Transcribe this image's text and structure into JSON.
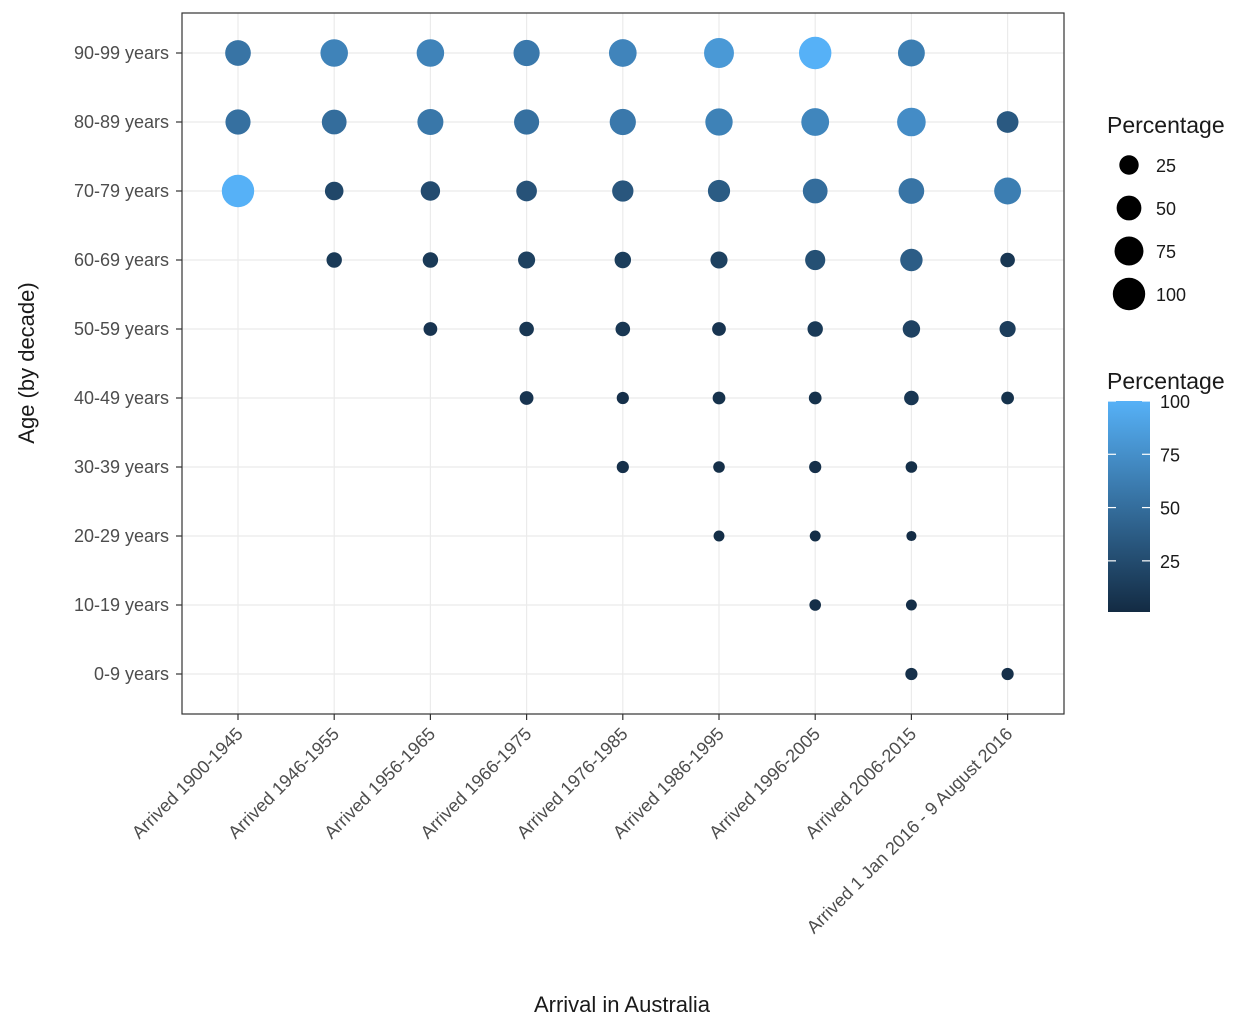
{
  "chart_data": {
    "type": "scatter",
    "title": "",
    "xlabel": "Arrival in Australia",
    "ylabel": "Age (by decade)",
    "grid": true,
    "legend_position": "right",
    "x_categories": [
      "Arrived 1900-1945",
      "Arrived 1946-1955",
      "Arrived 1956-1965",
      "Arrived 1966-1975",
      "Arrived 1976-1985",
      "Arrived 1986-1995",
      "Arrived 1996-2005",
      "Arrived 2006-2015",
      "Arrived 1 Jan 2016 - 9 August 2016"
    ],
    "y_categories": [
      "0-9 years",
      "10-19 years",
      "20-29 years",
      "30-39 years",
      "40-49 years",
      "50-59 years",
      "60-69 years",
      "70-79 years",
      "80-89 years",
      "90-99 years"
    ],
    "size_legend": {
      "title": "Percentage",
      "breaks": [
        25,
        50,
        75,
        100
      ]
    },
    "color_legend": {
      "title": "Percentage",
      "breaks": [
        25,
        50,
        75,
        100
      ],
      "low_color": "#132b43",
      "high_color": "#56b1f7",
      "range": [
        1,
        100
      ]
    },
    "points": [
      {
        "x": "Arrived 1900-1945",
        "y": "90-99 years",
        "value": 55
      },
      {
        "x": "Arrived 1900-1945",
        "y": "80-89 years",
        "value": 52
      },
      {
        "x": "Arrived 1900-1945",
        "y": "70-79 years",
        "value": 100
      },
      {
        "x": "Arrived 1946-1955",
        "y": "90-99 years",
        "value": 66
      },
      {
        "x": "Arrived 1946-1955",
        "y": "80-89 years",
        "value": 50
      },
      {
        "x": "Arrived 1946-1955",
        "y": "70-79 years",
        "value": 22
      },
      {
        "x": "Arrived 1946-1955",
        "y": "60-69 years",
        "value": 12
      },
      {
        "x": "Arrived 1956-1965",
        "y": "90-99 years",
        "value": 66
      },
      {
        "x": "Arrived 1956-1965",
        "y": "80-89 years",
        "value": 57
      },
      {
        "x": "Arrived 1956-1965",
        "y": "70-79 years",
        "value": 25
      },
      {
        "x": "Arrived 1956-1965",
        "y": "60-69 years",
        "value": 12
      },
      {
        "x": "Arrived 1956-1965",
        "y": "50-59 years",
        "value": 8
      },
      {
        "x": "Arrived 1966-1975",
        "y": "90-99 years",
        "value": 58
      },
      {
        "x": "Arrived 1966-1975",
        "y": "80-89 years",
        "value": 52
      },
      {
        "x": "Arrived 1966-1975",
        "y": "70-79 years",
        "value": 30
      },
      {
        "x": "Arrived 1966-1975",
        "y": "60-69 years",
        "value": 17
      },
      {
        "x": "Arrived 1966-1975",
        "y": "50-59 years",
        "value": 10
      },
      {
        "x": "Arrived 1966-1975",
        "y": "40-49 years",
        "value": 8
      },
      {
        "x": "Arrived 1976-1985",
        "y": "90-99 years",
        "value": 67
      },
      {
        "x": "Arrived 1976-1985",
        "y": "80-89 years",
        "value": 58
      },
      {
        "x": "Arrived 1976-1985",
        "y": "70-79 years",
        "value": 33
      },
      {
        "x": "Arrived 1976-1985",
        "y": "60-69 years",
        "value": 15
      },
      {
        "x": "Arrived 1976-1985",
        "y": "50-59 years",
        "value": 10
      },
      {
        "x": "Arrived 1976-1985",
        "y": "40-49 years",
        "value": 5
      },
      {
        "x": "Arrived 1976-1985",
        "y": "30-39 years",
        "value": 5
      },
      {
        "x": "Arrived 1986-1995",
        "y": "90-99 years",
        "value": 82
      },
      {
        "x": "Arrived 1986-1995",
        "y": "80-89 years",
        "value": 65
      },
      {
        "x": "Arrived 1986-1995",
        "y": "70-79 years",
        "value": 37
      },
      {
        "x": "Arrived 1986-1995",
        "y": "60-69 years",
        "value": 17
      },
      {
        "x": "Arrived 1986-1995",
        "y": "50-59 years",
        "value": 8
      },
      {
        "x": "Arrived 1986-1995",
        "y": "40-49 years",
        "value": 6
      },
      {
        "x": "Arrived 1986-1995",
        "y": "30-39 years",
        "value": 4
      },
      {
        "x": "Arrived 1986-1995",
        "y": "20-29 years",
        "value": 3
      },
      {
        "x": "Arrived 1996-2005",
        "y": "90-99 years",
        "value": 100
      },
      {
        "x": "Arrived 1996-2005",
        "y": "80-89 years",
        "value": 68
      },
      {
        "x": "Arrived 1996-2005",
        "y": "70-79 years",
        "value": 50
      },
      {
        "x": "Arrived 1996-2005",
        "y": "60-69 years",
        "value": 28
      },
      {
        "x": "Arrived 1996-2005",
        "y": "50-59 years",
        "value": 12
      },
      {
        "x": "Arrived 1996-2005",
        "y": "40-49 years",
        "value": 6
      },
      {
        "x": "Arrived 1996-2005",
        "y": "30-39 years",
        "value": 5
      },
      {
        "x": "Arrived 1996-2005",
        "y": "20-29 years",
        "value": 3
      },
      {
        "x": "Arrived 1996-2005",
        "y": "10-19 years",
        "value": 4
      },
      {
        "x": "Arrived 2006-2015",
        "y": "90-99 years",
        "value": 62
      },
      {
        "x": "Arrived 2006-2015",
        "y": "80-89 years",
        "value": 73
      },
      {
        "x": "Arrived 2006-2015",
        "y": "70-79 years",
        "value": 55
      },
      {
        "x": "Arrived 2006-2015",
        "y": "60-69 years",
        "value": 38
      },
      {
        "x": "Arrived 2006-2015",
        "y": "50-59 years",
        "value": 18
      },
      {
        "x": "Arrived 2006-2015",
        "y": "40-49 years",
        "value": 10
      },
      {
        "x": "Arrived 2006-2015",
        "y": "30-39 years",
        "value": 4
      },
      {
        "x": "Arrived 2006-2015",
        "y": "20-29 years",
        "value": 2
      },
      {
        "x": "Arrived 2006-2015",
        "y": "10-19 years",
        "value": 3
      },
      {
        "x": "Arrived 2006-2015",
        "y": "0-9 years",
        "value": 5
      },
      {
        "x": "Arrived 1 Jan 2016 - 9 August 2016",
        "y": "80-89 years",
        "value": 35
      },
      {
        "x": "Arrived 1 Jan 2016 - 9 August 2016",
        "y": "70-79 years",
        "value": 62
      },
      {
        "x": "Arrived 1 Jan 2016 - 9 August 2016",
        "y": "60-69 years",
        "value": 10
      },
      {
        "x": "Arrived 1 Jan 2016 - 9 August 2016",
        "y": "50-59 years",
        "value": 14
      },
      {
        "x": "Arrived 1 Jan 2016 - 9 August 2016",
        "y": "40-49 years",
        "value": 6
      },
      {
        "x": "Arrived 1 Jan 2016 - 9 August 2016",
        "y": "0-9 years",
        "value": 5
      }
    ]
  }
}
